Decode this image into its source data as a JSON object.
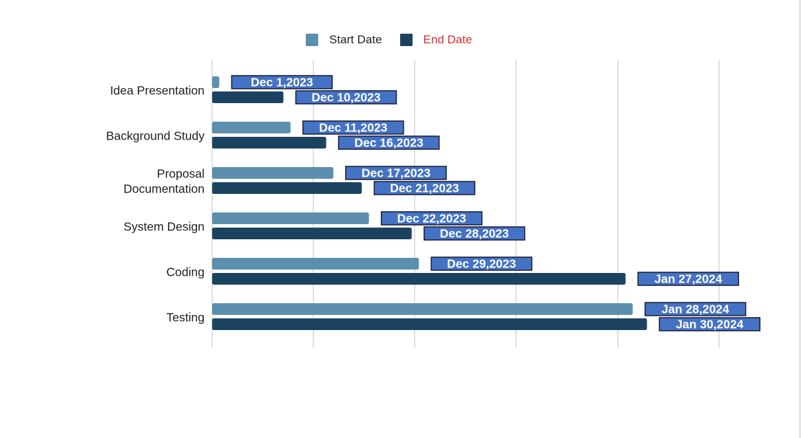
{
  "chart_data": {
    "type": "bar",
    "orientation": "horizontal",
    "title": "",
    "xlabel": "",
    "ylabel": "",
    "grid": true,
    "legend_position": "top",
    "categories": [
      "Idea Presentation",
      "Background Study",
      "Proposal Documentation",
      "System Design",
      "Coding",
      "Testing"
    ],
    "series": [
      {
        "name": "Start Date",
        "color": "#5b8fad",
        "values": [
          "2023-12-01",
          "2023-12-11",
          "2023-12-17",
          "2023-12-22",
          "2023-12-29",
          "2024-01-28"
        ],
        "labels": [
          "Dec 1,2023",
          "Dec 11,2023",
          "Dec 17,2023",
          "Dec  22,2023",
          "Dec 29,2023",
          "Jan 28,2024"
        ]
      },
      {
        "name": "End Date",
        "color": "#1b4360",
        "values": [
          "2023-12-10",
          "2023-12-16",
          "2023-12-21",
          "2023-12-28",
          "2024-01-27",
          "2024-01-30"
        ],
        "labels": [
          "Dec 10,2023",
          "Dec 16,2023",
          "Dec 21,2023",
          "Dec 28,2023",
          "Jan 27,2024",
          "Jan 30,2024"
        ]
      }
    ],
    "label_box_color": "#4472c4",
    "grid_color": "#cfcfcf"
  }
}
